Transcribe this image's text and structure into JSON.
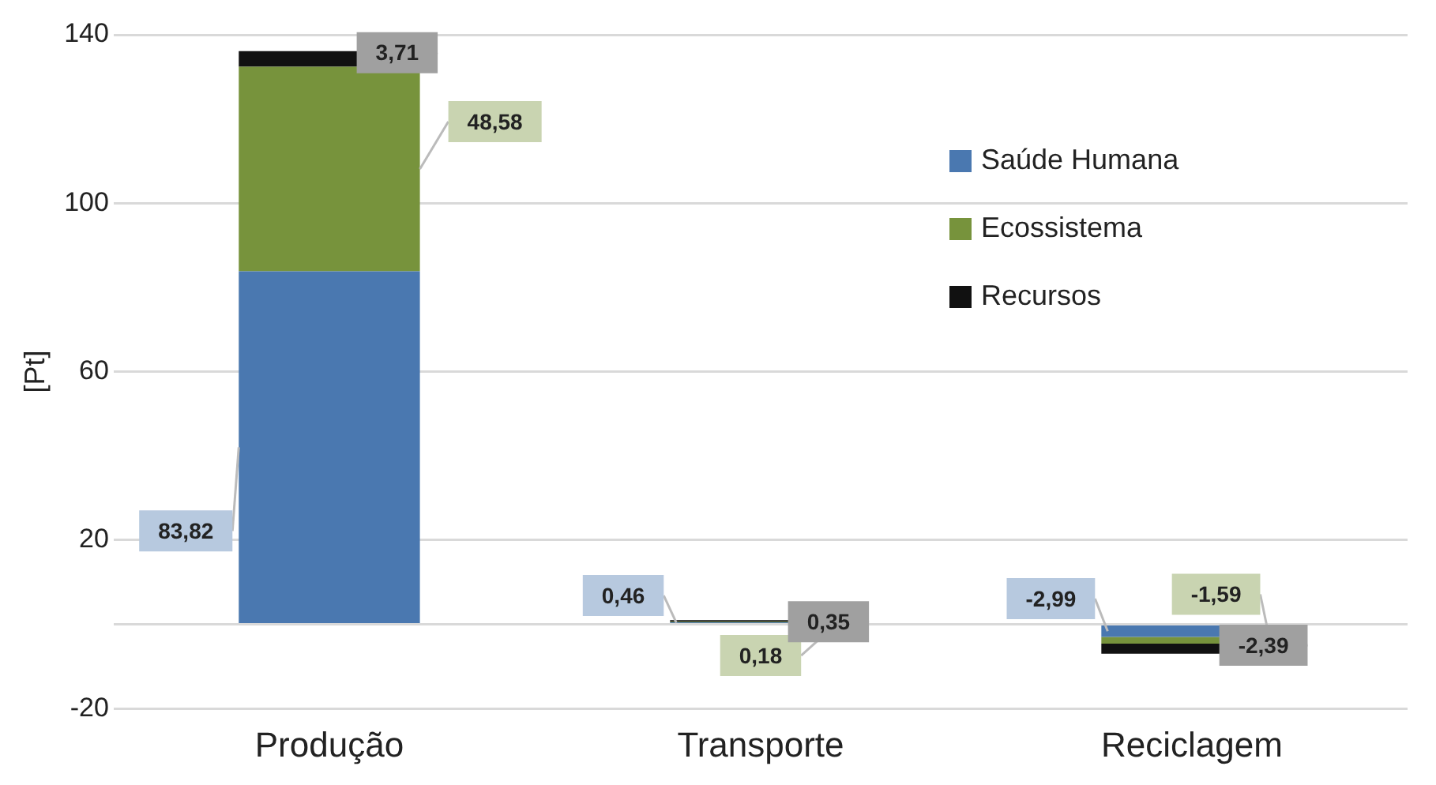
{
  "chart_data": {
    "type": "bar",
    "stacked": true,
    "ylabel": "[Pt]",
    "categories": [
      "Produção",
      "Transporte",
      "Reciclagem"
    ],
    "series": [
      {
        "name": "Saúde Humana",
        "color": "#4a78b0",
        "values": [
          83.82,
          0.46,
          -2.99
        ],
        "value_labels": [
          "83,82",
          "0,46",
          "-2,99"
        ]
      },
      {
        "name": "Ecossistema",
        "color": "#77933c",
        "values": [
          48.58,
          0.18,
          -1.59
        ],
        "value_labels": [
          "48,58",
          "0,18",
          "-1,59"
        ]
      },
      {
        "name": "Recursos",
        "color": "#111111",
        "values": [
          3.71,
          0.35,
          -2.39
        ],
        "value_labels": [
          "3,71",
          "0,35",
          "-2,39"
        ]
      }
    ],
    "ylim": [
      -20,
      140
    ],
    "yticks": [
      -20,
      {
        "value": 0,
        "label": null
      },
      20,
      60,
      100,
      140
    ],
    "grid": "y",
    "legend": "right"
  }
}
